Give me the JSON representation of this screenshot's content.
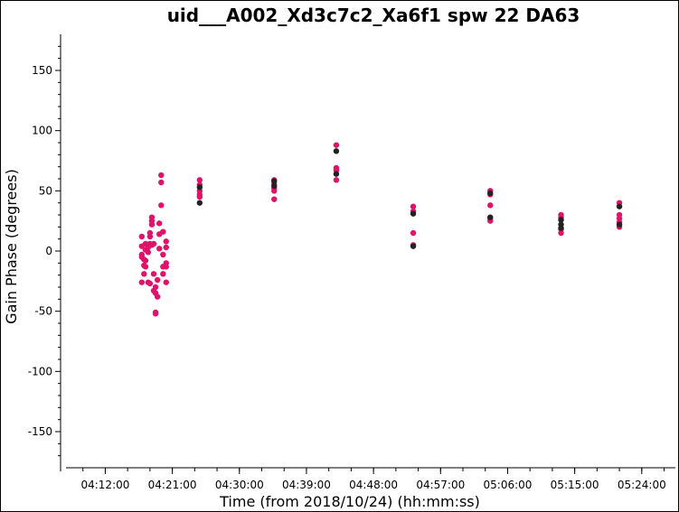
{
  "chart_data": {
    "type": "scatter",
    "title": "uid___A002_Xd3c7c2_Xa6f1 spw 22 DA63",
    "xlabel": "Time (from 2018/10/24) (hh:mm:ss)",
    "ylabel": "Gain Phase (degrees)",
    "xlim": [
      "04:06:00",
      "05:29:00"
    ],
    "ylim": [
      -180,
      180
    ],
    "xticks": [
      "04:12:00",
      "04:21:00",
      "04:30:00",
      "04:39:00",
      "04:48:00",
      "04:57:00",
      "05:06:00",
      "05:15:00",
      "05:24:00"
    ],
    "yticks": [
      150,
      100,
      50,
      0,
      -50,
      -100,
      -150
    ],
    "grid": false,
    "colors": {
      "series_1": "#e0126a",
      "series_2": "#222222"
    },
    "series": [
      {
        "color": "#e0126a",
        "points": [
          {
            "x": "04:16:54",
            "y": 12
          },
          {
            "x": "04:16:54",
            "y": 4
          },
          {
            "x": "04:16:54",
            "y": -3
          },
          {
            "x": "04:16:54",
            "y": -5
          },
          {
            "x": "04:16:54",
            "y": -26
          },
          {
            "x": "04:17:12",
            "y": -19
          },
          {
            "x": "04:17:12",
            "y": -12
          },
          {
            "x": "04:17:12",
            "y": -7
          },
          {
            "x": "04:17:24",
            "y": 6
          },
          {
            "x": "04:17:24",
            "y": 1
          },
          {
            "x": "04:17:24",
            "y": -8
          },
          {
            "x": "04:17:24",
            "y": -13
          },
          {
            "x": "04:17:45",
            "y": 3
          },
          {
            "x": "04:17:45",
            "y": -1
          },
          {
            "x": "04:17:45",
            "y": -26
          },
          {
            "x": "04:18:00",
            "y": 15
          },
          {
            "x": "04:18:00",
            "y": 12
          },
          {
            "x": "04:18:00",
            "y": 6
          },
          {
            "x": "04:18:00",
            "y": -27
          },
          {
            "x": "04:18:15",
            "y": 28
          },
          {
            "x": "04:18:15",
            "y": 25
          },
          {
            "x": "04:18:15",
            "y": 22
          },
          {
            "x": "04:18:15",
            "y": 5
          },
          {
            "x": "04:18:30",
            "y": 6
          },
          {
            "x": "04:18:30",
            "y": -19
          },
          {
            "x": "04:18:30",
            "y": -33
          },
          {
            "x": "04:18:45",
            "y": -30
          },
          {
            "x": "04:18:45",
            "y": -35
          },
          {
            "x": "04:18:45",
            "y": -51
          },
          {
            "x": "04:18:45",
            "y": -52
          },
          {
            "x": "04:19:00",
            "y": -24
          },
          {
            "x": "04:19:00",
            "y": -38
          },
          {
            "x": "04:19:15",
            "y": 23
          },
          {
            "x": "04:19:15",
            "y": 14
          },
          {
            "x": "04:19:15",
            "y": 2
          },
          {
            "x": "04:19:30",
            "y": 63
          },
          {
            "x": "04:19:30",
            "y": 57
          },
          {
            "x": "04:19:30",
            "y": 38
          },
          {
            "x": "04:19:45",
            "y": 16
          },
          {
            "x": "04:19:45",
            "y": -3
          },
          {
            "x": "04:19:45",
            "y": -13
          },
          {
            "x": "04:19:45",
            "y": -19
          },
          {
            "x": "04:20:10",
            "y": 8
          },
          {
            "x": "04:20:10",
            "y": 3
          },
          {
            "x": "04:20:10",
            "y": -10
          },
          {
            "x": "04:20:10",
            "y": -13
          },
          {
            "x": "04:20:10",
            "y": -26
          },
          {
            "x": "04:24:40",
            "y": 59
          },
          {
            "x": "04:24:40",
            "y": 55
          },
          {
            "x": "04:24:40",
            "y": 50
          },
          {
            "x": "04:24:40",
            "y": 47
          },
          {
            "x": "04:24:40",
            "y": 45
          },
          {
            "x": "04:34:40",
            "y": 59
          },
          {
            "x": "04:34:40",
            "y": 56
          },
          {
            "x": "04:34:40",
            "y": 52
          },
          {
            "x": "04:34:40",
            "y": 50
          },
          {
            "x": "04:34:40",
            "y": 43
          },
          {
            "x": "04:43:00",
            "y": 88
          },
          {
            "x": "04:43:00",
            "y": 69
          },
          {
            "x": "04:43:00",
            "y": 67
          },
          {
            "x": "04:43:00",
            "y": 59
          },
          {
            "x": "04:53:20",
            "y": 37
          },
          {
            "x": "04:53:20",
            "y": 33
          },
          {
            "x": "04:53:20",
            "y": 15
          },
          {
            "x": "04:53:20",
            "y": 5
          },
          {
            "x": "05:03:40",
            "y": 50
          },
          {
            "x": "05:03:40",
            "y": 47
          },
          {
            "x": "05:03:40",
            "y": 38
          },
          {
            "x": "05:03:40",
            "y": 27
          },
          {
            "x": "05:03:40",
            "y": 25
          },
          {
            "x": "05:13:10",
            "y": 30
          },
          {
            "x": "05:13:10",
            "y": 28
          },
          {
            "x": "05:13:10",
            "y": 26
          },
          {
            "x": "05:13:10",
            "y": 18
          },
          {
            "x": "05:13:10",
            "y": 15
          },
          {
            "x": "05:21:00",
            "y": 40
          },
          {
            "x": "05:21:00",
            "y": 30
          },
          {
            "x": "05:21:00",
            "y": 27
          },
          {
            "x": "05:21:00",
            "y": 24
          },
          {
            "x": "05:21:00",
            "y": 20
          }
        ]
      },
      {
        "color": "#222222",
        "points": [
          {
            "x": "04:24:40",
            "y": 53
          },
          {
            "x": "04:24:40",
            "y": 40
          },
          {
            "x": "04:34:40",
            "y": 58
          },
          {
            "x": "04:34:40",
            "y": 54
          },
          {
            "x": "04:43:00",
            "y": 83
          },
          {
            "x": "04:43:00",
            "y": 64
          },
          {
            "x": "04:53:20",
            "y": 31
          },
          {
            "x": "04:53:20",
            "y": 4
          },
          {
            "x": "05:03:40",
            "y": 48
          },
          {
            "x": "05:03:40",
            "y": 28
          },
          {
            "x": "05:13:10",
            "y": 26
          },
          {
            "x": "05:13:10",
            "y": 22
          },
          {
            "x": "05:13:10",
            "y": 19
          },
          {
            "x": "05:21:00",
            "y": 37
          },
          {
            "x": "05:21:00",
            "y": 22
          }
        ]
      }
    ]
  }
}
